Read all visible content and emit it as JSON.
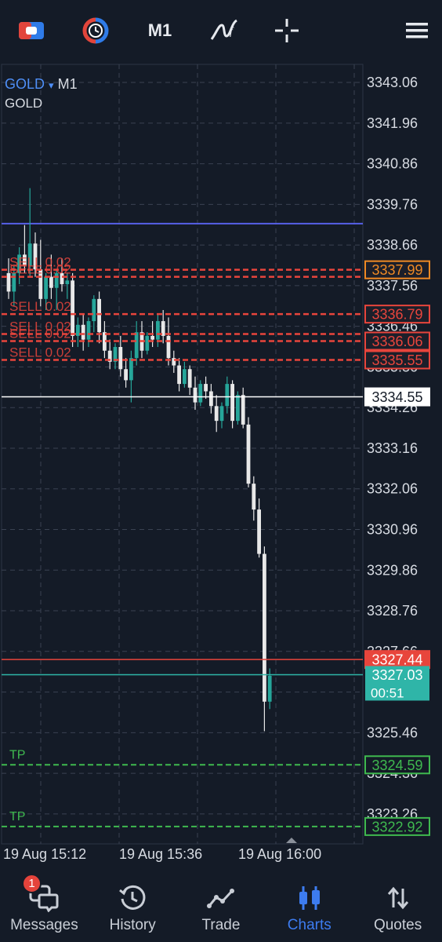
{
  "toolbar": {
    "timeframe": "M1",
    "icons": [
      "one-click-trading-icon",
      "account-switch-icon",
      "indicators-icon",
      "crosshair-icon",
      "menu-icon"
    ]
  },
  "chart": {
    "symbol": "GOLD",
    "dropdown_glyph": "▾",
    "timeframe": "M1",
    "description": "GOLD"
  },
  "chart_data": {
    "type": "candlestick",
    "symbol": "GOLD",
    "timeframe": "M1",
    "y_ticks": [
      "3343.06",
      "3341.96",
      "3340.86",
      "3339.76",
      "3338.66",
      "3337.56",
      "3336.46",
      "3335.36",
      "3334.26",
      "3333.16",
      "3332.06",
      "3330.96",
      "3329.86",
      "3328.76",
      "3327.66",
      "3326.56",
      "3325.46",
      "3324.36",
      "3323.26"
    ],
    "y_tick_values": [
      3343.06,
      3341.96,
      3340.86,
      3339.76,
      3338.66,
      3337.56,
      3336.46,
      3335.36,
      3334.26,
      3333.16,
      3332.06,
      3330.96,
      3329.86,
      3328.76,
      3327.66,
      3326.56,
      3325.46,
      3324.36,
      3323.26
    ],
    "ylim": [
      3322.45,
      3343.55
    ],
    "x_ticks": [
      "19 Aug 15:12",
      "19 Aug 15:36",
      "19 Aug 16:00"
    ],
    "grid": true,
    "colors": {
      "bull": "#26a69a",
      "bear": "#e8e8e8",
      "sell": "#e8453c",
      "tp": "#3fb94f",
      "bid": "#ffffff",
      "ask": "#e8453c",
      "last": "#2fb5a8",
      "high_line": "#5660e8",
      "tag_sell": "#f08a24"
    },
    "high_line": 3339.24,
    "current_line": {
      "label": "3334.55",
      "value": 3334.55
    },
    "ask": {
      "label": "3327.44",
      "value": 3327.44
    },
    "bid": {
      "label": "3327.03",
      "value": 3327.03,
      "countdown": "00:51"
    },
    "orders": [
      {
        "label": "SELL 0.02",
        "price": 3337.99,
        "price_label": "3337.99",
        "highlight": true
      },
      {
        "label": "SELL 0.02",
        "price": 3337.8,
        "price_label": ""
      },
      {
        "label": "SELL 0.02",
        "price": 3336.79,
        "price_label": "3336.79"
      },
      {
        "label": "SELL 0.02",
        "price": 3336.25,
        "price_label": ""
      },
      {
        "label": "SELL 0.02",
        "price": 3336.06,
        "price_label": "3336.06"
      },
      {
        "label": "SELL 0.02",
        "price": 3335.55,
        "price_label": "3335.55"
      }
    ],
    "take_profits": [
      {
        "label": "TP",
        "price": 3324.59,
        "price_label": "3324.59"
      },
      {
        "label": "TP",
        "price": 3322.92,
        "price_label": "3322.92"
      }
    ],
    "candles": [
      [
        3337.9,
        3338.3,
        3337.2,
        3337.4
      ],
      [
        3337.4,
        3338.1,
        3337.0,
        3337.9
      ],
      [
        3337.9,
        3338.6,
        3337.6,
        3338.4
      ],
      [
        3338.4,
        3339.2,
        3337.9,
        3338.1
      ],
      [
        3338.1,
        3340.2,
        3337.8,
        3338.7
      ],
      [
        3338.7,
        3339.0,
        3337.8,
        3338.0
      ],
      [
        3338.0,
        3338.8,
        3337.0,
        3337.2
      ],
      [
        3337.2,
        3337.9,
        3336.9,
        3337.8
      ],
      [
        3337.8,
        3338.4,
        3337.2,
        3337.5
      ],
      [
        3337.5,
        3338.0,
        3336.9,
        3337.9
      ],
      [
        3337.9,
        3338.3,
        3337.4,
        3337.6
      ],
      [
        3337.6,
        3337.9,
        3337.2,
        3337.7
      ],
      [
        3337.7,
        3337.9,
        3335.9,
        3336.2
      ],
      [
        3336.2,
        3336.7,
        3335.9,
        3336.5
      ],
      [
        3336.5,
        3336.8,
        3335.8,
        3336.1
      ],
      [
        3336.1,
        3336.7,
        3335.9,
        3336.6
      ],
      [
        3336.6,
        3337.3,
        3336.3,
        3337.2
      ],
      [
        3337.2,
        3337.4,
        3336.0,
        3336.3
      ],
      [
        3336.3,
        3336.6,
        3335.6,
        3335.8
      ],
      [
        3335.8,
        3336.1,
        3335.3,
        3335.5
      ],
      [
        3335.5,
        3336.0,
        3335.3,
        3335.9
      ],
      [
        3335.9,
        3336.2,
        3335.1,
        3335.3
      ],
      [
        3335.3,
        3335.6,
        3334.8,
        3335.0
      ],
      [
        3335.0,
        3335.8,
        3334.4,
        3335.6
      ],
      [
        3335.6,
        3336.6,
        3335.4,
        3336.3
      ],
      [
        3336.3,
        3336.6,
        3335.6,
        3335.8
      ],
      [
        3335.8,
        3336.3,
        3335.7,
        3336.2
      ],
      [
        3336.2,
        3336.6,
        3335.9,
        3336.1
      ],
      [
        3336.1,
        3336.8,
        3335.9,
        3336.6
      ],
      [
        3336.6,
        3336.9,
        3336.0,
        3336.2
      ],
      [
        3336.2,
        3336.7,
        3335.4,
        3335.6
      ],
      [
        3335.6,
        3335.8,
        3335.2,
        3335.4
      ],
      [
        3335.4,
        3335.6,
        3334.7,
        3334.9
      ],
      [
        3334.9,
        3335.5,
        3334.8,
        3335.3
      ],
      [
        3335.3,
        3335.4,
        3334.6,
        3334.8
      ],
      [
        3334.8,
        3335.1,
        3334.2,
        3334.4
      ],
      [
        3334.4,
        3335.0,
        3334.3,
        3334.9
      ],
      [
        3334.9,
        3335.1,
        3334.5,
        3334.7
      ],
      [
        3334.7,
        3334.9,
        3334.1,
        3334.3
      ],
      [
        3334.3,
        3334.6,
        3333.6,
        3333.9
      ],
      [
        3333.9,
        3334.4,
        3333.7,
        3334.3
      ],
      [
        3334.3,
        3335.1,
        3334.1,
        3334.9
      ],
      [
        3334.9,
        3335.0,
        3333.7,
        3333.9
      ],
      [
        3333.9,
        3334.7,
        3333.8,
        3334.6
      ],
      [
        3334.6,
        3334.8,
        3333.7,
        3333.8
      ],
      [
        3333.8,
        3334.0,
        3332.1,
        3332.2
      ],
      [
        3332.2,
        3332.4,
        3331.2,
        3331.5
      ],
      [
        3331.5,
        3331.8,
        3330.2,
        3330.3
      ],
      [
        3330.3,
        3330.5,
        3325.5,
        3326.3
      ],
      [
        3326.3,
        3327.2,
        3326.1,
        3327.0
      ]
    ]
  },
  "nav": {
    "items": [
      {
        "label": "Messages",
        "icon": "messages-icon",
        "badge": "1",
        "active": false
      },
      {
        "label": "History",
        "icon": "history-icon",
        "active": false
      },
      {
        "label": "Trade",
        "icon": "trade-icon",
        "active": false
      },
      {
        "label": "Charts",
        "icon": "charts-icon",
        "active": true
      },
      {
        "label": "Quotes",
        "icon": "quotes-icon",
        "active": false
      }
    ]
  }
}
